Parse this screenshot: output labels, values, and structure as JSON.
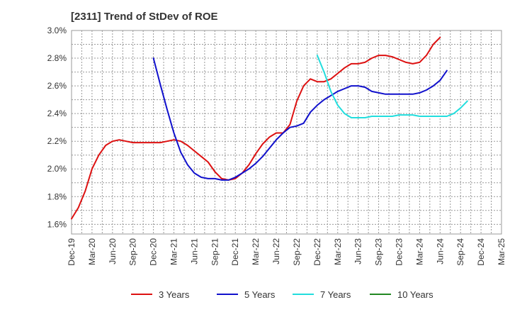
{
  "chart_data": {
    "type": "line",
    "title": "[2311]  Trend of StDev of ROE",
    "xlabel": "",
    "ylabel": "",
    "x_ticks": [
      "Dec-19",
      "Mar-20",
      "Jun-20",
      "Sep-20",
      "Dec-20",
      "Mar-21",
      "Jun-21",
      "Sep-21",
      "Dec-21",
      "Mar-22",
      "Jun-22",
      "Sep-22",
      "Dec-22",
      "Mar-23",
      "Jun-23",
      "Sep-23",
      "Dec-23",
      "Mar-24",
      "Jun-24",
      "Sep-24",
      "Dec-24",
      "Mar-25"
    ],
    "y_ticks": [
      "1.6%",
      "1.8%",
      "2.0%",
      "2.2%",
      "2.4%",
      "2.6%",
      "2.8%",
      "3.0%"
    ],
    "y_tick_values": [
      1.6,
      1.8,
      2.0,
      2.2,
      2.4,
      2.6,
      2.8,
      3.0
    ],
    "ylim": [
      1.53,
      3.0
    ],
    "grid": true,
    "legend_position": "bottom",
    "series": [
      {
        "name": "3 Years",
        "color": "#dd1111",
        "points": [
          [
            "Dec-19",
            1.64
          ],
          [
            "Jan-20",
            1.72
          ],
          [
            "Feb-20",
            1.84
          ],
          [
            "Mar-20",
            2.0
          ],
          [
            "Apr-20",
            2.1
          ],
          [
            "May-20",
            2.17
          ],
          [
            "Jun-20",
            2.2
          ],
          [
            "Jul-20",
            2.21
          ],
          [
            "Aug-20",
            2.2
          ],
          [
            "Sep-20",
            2.19
          ],
          [
            "Oct-20",
            2.19
          ],
          [
            "Nov-20",
            2.19
          ],
          [
            "Dec-20",
            2.19
          ],
          [
            "Jan-21",
            2.19
          ],
          [
            "Feb-21",
            2.2
          ],
          [
            "Mar-21",
            2.21
          ],
          [
            "Apr-21",
            2.2
          ],
          [
            "May-21",
            2.17
          ],
          [
            "Jun-21",
            2.13
          ],
          [
            "Jul-21",
            2.09
          ],
          [
            "Aug-21",
            2.05
          ],
          [
            "Sep-21",
            1.98
          ],
          [
            "Oct-21",
            1.93
          ],
          [
            "Nov-21",
            1.92
          ],
          [
            "Dec-21",
            1.93
          ],
          [
            "Jan-22",
            1.97
          ],
          [
            "Feb-22",
            2.03
          ],
          [
            "Mar-22",
            2.11
          ],
          [
            "Apr-22",
            2.18
          ],
          [
            "May-22",
            2.23
          ],
          [
            "Jun-22",
            2.26
          ],
          [
            "Jul-22",
            2.26
          ],
          [
            "Aug-22",
            2.32
          ],
          [
            "Sep-22",
            2.49
          ],
          [
            "Oct-22",
            2.6
          ],
          [
            "Nov-22",
            2.65
          ],
          [
            "Dec-22",
            2.63
          ],
          [
            "Jan-23",
            2.63
          ],
          [
            "Feb-23",
            2.65
          ],
          [
            "Mar-23",
            2.69
          ],
          [
            "Apr-23",
            2.73
          ],
          [
            "May-23",
            2.76
          ],
          [
            "Jun-23",
            2.76
          ],
          [
            "Jul-23",
            2.77
          ],
          [
            "Aug-23",
            2.8
          ],
          [
            "Sep-23",
            2.82
          ],
          [
            "Oct-23",
            2.82
          ],
          [
            "Nov-23",
            2.81
          ],
          [
            "Dec-23",
            2.79
          ],
          [
            "Jan-24",
            2.77
          ],
          [
            "Feb-24",
            2.76
          ],
          [
            "Mar-24",
            2.77
          ],
          [
            "Apr-24",
            2.82
          ],
          [
            "May-24",
            2.9
          ],
          [
            "Jun-24",
            2.95
          ]
        ]
      },
      {
        "name": "5 Years",
        "color": "#1111cc",
        "points": [
          [
            "Dec-20",
            2.8
          ],
          [
            "Jan-21",
            2.61
          ],
          [
            "Feb-21",
            2.43
          ],
          [
            "Mar-21",
            2.26
          ],
          [
            "Apr-21",
            2.12
          ],
          [
            "May-21",
            2.03
          ],
          [
            "Jun-21",
            1.97
          ],
          [
            "Jul-21",
            1.94
          ],
          [
            "Aug-21",
            1.93
          ],
          [
            "Sep-21",
            1.93
          ],
          [
            "Oct-21",
            1.92
          ],
          [
            "Nov-21",
            1.92
          ],
          [
            "Dec-21",
            1.94
          ],
          [
            "Jan-22",
            1.97
          ],
          [
            "Feb-22",
            2.0
          ],
          [
            "Mar-22",
            2.04
          ],
          [
            "Apr-22",
            2.09
          ],
          [
            "May-22",
            2.15
          ],
          [
            "Jun-22",
            2.21
          ],
          [
            "Jul-22",
            2.26
          ],
          [
            "Aug-22",
            2.3
          ],
          [
            "Sep-22",
            2.31
          ],
          [
            "Oct-22",
            2.33
          ],
          [
            "Nov-22",
            2.41
          ],
          [
            "Dec-22",
            2.46
          ],
          [
            "Jan-23",
            2.5
          ],
          [
            "Feb-23",
            2.53
          ],
          [
            "Mar-23",
            2.56
          ],
          [
            "Apr-23",
            2.58
          ],
          [
            "May-23",
            2.6
          ],
          [
            "Jun-23",
            2.6
          ],
          [
            "Jul-23",
            2.59
          ],
          [
            "Aug-23",
            2.56
          ],
          [
            "Sep-23",
            2.55
          ],
          [
            "Oct-23",
            2.54
          ],
          [
            "Nov-23",
            2.54
          ],
          [
            "Dec-23",
            2.54
          ],
          [
            "Jan-24",
            2.54
          ],
          [
            "Feb-24",
            2.54
          ],
          [
            "Mar-24",
            2.55
          ],
          [
            "Apr-24",
            2.57
          ],
          [
            "May-24",
            2.6
          ],
          [
            "Jun-24",
            2.64
          ],
          [
            "Jul-24",
            2.71
          ]
        ]
      },
      {
        "name": "7 Years",
        "color": "#22dddd",
        "points": [
          [
            "Dec-22",
            2.82
          ],
          [
            "Jan-23",
            2.7
          ],
          [
            "Feb-23",
            2.56
          ],
          [
            "Mar-23",
            2.46
          ],
          [
            "Apr-23",
            2.4
          ],
          [
            "May-23",
            2.37
          ],
          [
            "Jun-23",
            2.37
          ],
          [
            "Jul-23",
            2.37
          ],
          [
            "Aug-23",
            2.38
          ],
          [
            "Sep-23",
            2.38
          ],
          [
            "Oct-23",
            2.38
          ],
          [
            "Nov-23",
            2.38
          ],
          [
            "Dec-23",
            2.39
          ],
          [
            "Jan-24",
            2.39
          ],
          [
            "Feb-24",
            2.39
          ],
          [
            "Mar-24",
            2.38
          ],
          [
            "Apr-24",
            2.38
          ],
          [
            "May-24",
            2.38
          ],
          [
            "Jun-24",
            2.38
          ],
          [
            "Jul-24",
            2.38
          ],
          [
            "Aug-24",
            2.4
          ],
          [
            "Sep-24",
            2.44
          ],
          [
            "Oct-24",
            2.49
          ]
        ]
      },
      {
        "name": "10 Years",
        "color": "#228822",
        "points": []
      }
    ]
  }
}
